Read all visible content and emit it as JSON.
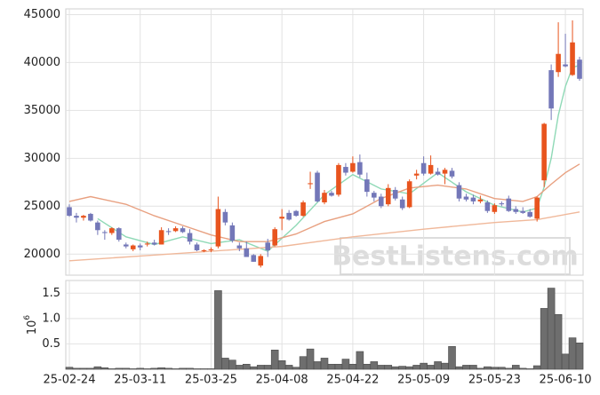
{
  "chart_data": [
    {
      "type": "candlestick",
      "watermark": "BestListens.com",
      "up_color": "#e8541e",
      "down_color": "#7377b8",
      "x": [
        0,
        1,
        2,
        3,
        4,
        5,
        6,
        7,
        8,
        9,
        10,
        11,
        12,
        13,
        14,
        15,
        16,
        17,
        18,
        19,
        20,
        21,
        22,
        23,
        24,
        25,
        26,
        27,
        28,
        29,
        30,
        31,
        32,
        33,
        34,
        35,
        36,
        37,
        38,
        39,
        40,
        41,
        42,
        43,
        44,
        45,
        46,
        47,
        48,
        49,
        50,
        51,
        52,
        53,
        54,
        55,
        56,
        57,
        58,
        59,
        60,
        61,
        62,
        63,
        64,
        65,
        66,
        67,
        68,
        69,
        70,
        71,
        72
      ],
      "open": [
        24900,
        24000,
        23800,
        24200,
        23300,
        22300,
        22200,
        22700,
        21000,
        20500,
        20900,
        21000,
        21200,
        21000,
        22400,
        22400,
        22700,
        22200,
        21000,
        20300,
        20400,
        20800,
        24400,
        23000,
        20900,
        20600,
        19900,
        18800,
        21200,
        20900,
        23700,
        24300,
        24500,
        24000,
        27300,
        28500,
        25400,
        26400,
        26200,
        29100,
        28600,
        29600,
        27800,
        26400,
        26000,
        25200,
        26700,
        25700,
        24900,
        28200,
        29500,
        28400,
        28600,
        28400,
        28700,
        27200,
        26000,
        25900,
        25500,
        25400,
        24400,
        25300,
        25800,
        24700,
        24500,
        24400,
        23700,
        27700,
        39200,
        39000,
        39800,
        38700,
        40300
      ],
      "high": [
        25200,
        24300,
        24100,
        24300,
        23500,
        22500,
        22800,
        22800,
        21200,
        21000,
        21100,
        21300,
        21500,
        22800,
        22700,
        22900,
        22900,
        22600,
        21200,
        20500,
        20700,
        26000,
        24700,
        23300,
        21200,
        21300,
        20000,
        20000,
        21600,
        22800,
        24700,
        24600,
        24600,
        25600,
        28600,
        28700,
        26700,
        26600,
        29500,
        29500,
        30200,
        30400,
        28500,
        26600,
        26300,
        27300,
        27000,
        26000,
        27800,
        28800,
        30200,
        30300,
        29000,
        29000,
        29000,
        27500,
        26300,
        26200,
        26100,
        25600,
        25300,
        25500,
        26100,
        25000,
        24900,
        24700,
        26000,
        33700,
        39800,
        44200,
        43000,
        44400,
        40600
      ],
      "low": [
        23900,
        23300,
        23500,
        23400,
        22000,
        21500,
        22000,
        21300,
        20600,
        20300,
        20400,
        20800,
        20900,
        21000,
        22000,
        22300,
        22200,
        21000,
        20300,
        20200,
        20200,
        20600,
        23000,
        21200,
        20300,
        19700,
        19200,
        18600,
        19700,
        20800,
        22500,
        23500,
        23900,
        23900,
        26800,
        25400,
        25200,
        26000,
        26000,
        28200,
        28500,
        28000,
        26000,
        25500,
        24800,
        25000,
        25600,
        24600,
        24800,
        27800,
        28200,
        28300,
        28200,
        27300,
        27900,
        25500,
        25500,
        25200,
        25300,
        24300,
        24200,
        25000,
        24400,
        24200,
        24200,
        23800,
        23400,
        27000,
        34000,
        38500,
        39500,
        38600,
        38100
      ],
      "close": [
        24000,
        23800,
        24000,
        23500,
        22500,
        22200,
        22700,
        21500,
        20800,
        20900,
        20700,
        21100,
        21000,
        22500,
        22300,
        22700,
        22300,
        21300,
        20400,
        20400,
        20500,
        24700,
        23300,
        21400,
        20600,
        19700,
        19200,
        19800,
        20400,
        22600,
        23900,
        23600,
        24000,
        25400,
        27400,
        25500,
        26400,
        26100,
        29300,
        28500,
        29500,
        28300,
        26500,
        25900,
        25000,
        26900,
        25800,
        24800,
        27600,
        28400,
        28400,
        29300,
        28300,
        28800,
        28100,
        25800,
        25700,
        25500,
        25700,
        24500,
        25100,
        25200,
        24500,
        24400,
        24300,
        23900,
        25900,
        33600,
        35200,
        40900,
        39600,
        42100,
        38300
      ],
      "lines": [
        {
          "color": "#8fd9b6",
          "x": [
            4,
            8,
            12,
            16,
            20,
            24,
            28,
            32,
            36,
            40,
            44,
            48,
            52,
            56,
            60,
            64,
            66,
            67,
            68,
            69,
            70,
            71,
            72
          ],
          "values": [
            23700,
            21800,
            21000,
            21800,
            21100,
            21500,
            20300,
            23000,
            26200,
            28300,
            26800,
            26300,
            28500,
            26500,
            25100,
            24400,
            24800,
            27000,
            30000,
            34500,
            37500,
            39500,
            39700
          ]
        },
        {
          "color": "#e8a080",
          "x": [
            0,
            3,
            8,
            12,
            16,
            20,
            24,
            28,
            32,
            36,
            40,
            44,
            48,
            52,
            56,
            60,
            64,
            66,
            68,
            70,
            72
          ],
          "values": [
            25500,
            26000,
            25200,
            24000,
            23000,
            22000,
            21300,
            21300,
            22100,
            23400,
            24200,
            25800,
            26900,
            27200,
            26800,
            25800,
            25500,
            26000,
            27300,
            28500,
            29400
          ]
        },
        {
          "color": "#f0b89a",
          "x": [
            0,
            10,
            20,
            30,
            40,
            50,
            60,
            66,
            72
          ],
          "values": [
            19300,
            19800,
            20300,
            20800,
            21800,
            22600,
            23300,
            23600,
            24400
          ]
        }
      ],
      "xlim": [
        -0.5,
        72.5
      ],
      "xticks": [
        {
          "value": 0,
          "label": "25-02-24"
        },
        {
          "value": 10,
          "label": "25-03-11"
        },
        {
          "value": 20,
          "label": "25-03-25"
        },
        {
          "value": 30,
          "label": "25-04-08"
        },
        {
          "value": 40,
          "label": "25-04-22"
        },
        {
          "value": 50,
          "label": "25-05-09"
        },
        {
          "value": 60,
          "label": "25-05-23"
        },
        {
          "value": 70,
          "label": "25-06-10"
        }
      ],
      "ylim": [
        17800,
        45600
      ],
      "yticks": [
        20000,
        25000,
        30000,
        35000,
        40000,
        45000
      ],
      "grid": true
    },
    {
      "type": "bar",
      "offset_base": "10",
      "offset_exponent": "6",
      "color": "#6e6e6e",
      "x": [
        0,
        1,
        2,
        3,
        4,
        5,
        6,
        7,
        8,
        9,
        10,
        11,
        12,
        13,
        14,
        15,
        16,
        17,
        18,
        19,
        20,
        21,
        22,
        23,
        24,
        25,
        26,
        27,
        28,
        29,
        30,
        31,
        32,
        33,
        34,
        35,
        36,
        37,
        38,
        39,
        40,
        41,
        42,
        43,
        44,
        45,
        46,
        47,
        48,
        49,
        50,
        51,
        52,
        53,
        54,
        55,
        56,
        57,
        58,
        59,
        60,
        61,
        62,
        63,
        64,
        65,
        66,
        67,
        68,
        69,
        70,
        71,
        72
      ],
      "values": [
        0.04,
        0.02,
        0.02,
        0.02,
        0.05,
        0.03,
        0.01,
        0.02,
        0.02,
        0.01,
        0.02,
        0.01,
        0.02,
        0.03,
        0.02,
        0.01,
        0.02,
        0.02,
        0.01,
        0.01,
        0.01,
        1.55,
        0.22,
        0.18,
        0.08,
        0.1,
        0.05,
        0.08,
        0.08,
        0.38,
        0.17,
        0.08,
        0.04,
        0.25,
        0.4,
        0.15,
        0.22,
        0.1,
        0.1,
        0.2,
        0.1,
        0.35,
        0.1,
        0.15,
        0.08,
        0.08,
        0.05,
        0.06,
        0.05,
        0.08,
        0.12,
        0.08,
        0.15,
        0.12,
        0.45,
        0.05,
        0.08,
        0.08,
        0.02,
        0.05,
        0.04,
        0.04,
        0.02,
        0.08,
        0.02,
        0.01,
        0.07,
        1.2,
        1.6,
        1.08,
        0.3,
        0.62,
        0.52
      ],
      "xlim": [
        -0.5,
        72.5
      ],
      "xticks": [
        {
          "value": 0,
          "label": "25-02-24"
        },
        {
          "value": 10,
          "label": "25-03-11"
        },
        {
          "value": 20,
          "label": "25-03-25"
        },
        {
          "value": 30,
          "label": "25-04-08"
        },
        {
          "value": 40,
          "label": "25-04-22"
        },
        {
          "value": 50,
          "label": "25-05-09"
        },
        {
          "value": 60,
          "label": "25-05-23"
        },
        {
          "value": 70,
          "label": "25-06-10"
        }
      ],
      "ylim": [
        0,
        1.75
      ],
      "yticks": [
        0.5,
        {
          "value": 1,
          "label": "1.0"
        },
        1.5
      ],
      "grid": true
    }
  ]
}
